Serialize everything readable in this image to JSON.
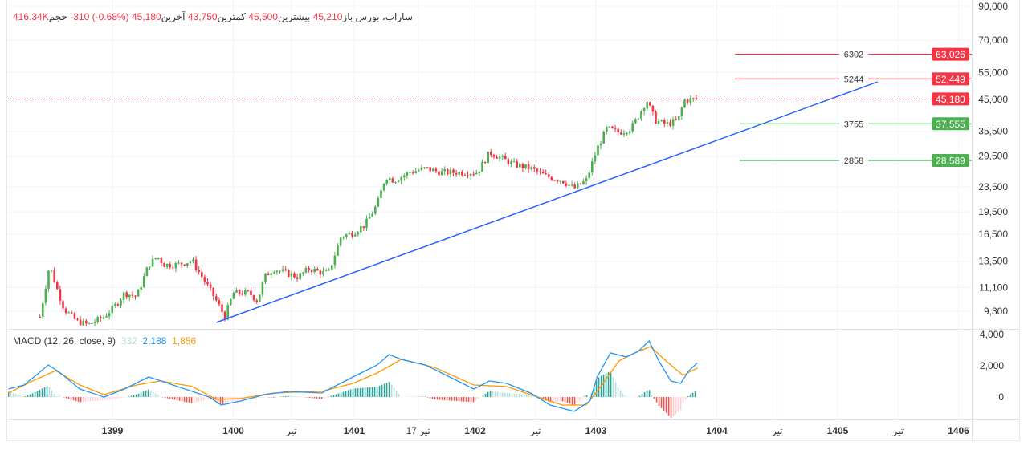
{
  "header": {
    "symbol": "ساراب، بورس",
    "open_label": "باز",
    "open": "45,210",
    "high_label": "بیشترین",
    "high": "45,500",
    "low_label": "کمترین",
    "low": "43,750",
    "last_label": "آخرین",
    "last": "45,180",
    "change": "-310 (-0.68%)",
    "volume_label": "حجم",
    "volume": "416.34K"
  },
  "macd_legend": {
    "label": "MACD (12, 26, close, 9)",
    "histogram": "332",
    "macd": "2,188",
    "signal": "1,856"
  },
  "colors": {
    "up": "#4caf50",
    "down": "#f23645",
    "trendline": "#2962ff",
    "macd": "#2196f3",
    "signal": "#ff9800",
    "hist_up": "#26a69a",
    "hist_down": "#ef5350",
    "grid": "#f0f3fa"
  },
  "chart_data": [
    {
      "type": "candlestick",
      "scale": "log",
      "ylim": [
        8400,
        90000
      ],
      "y_ticks": [
        "90,000",
        "70,000",
        "55,000",
        "45,000",
        "35,500",
        "29,500",
        "23,500",
        "19,500",
        "16,500",
        "13,500",
        "11,100",
        "9,300"
      ],
      "x_ticks": [
        {
          "year": 1399,
          "label": "1399"
        },
        {
          "year": 1400,
          "label": "1400"
        },
        {
          "year": 1400.48,
          "label": "تیر"
        },
        {
          "year": 1401,
          "label": "1401"
        },
        {
          "year": 1401.53,
          "label": "17 تیر"
        },
        {
          "year": 1402,
          "label": "1402"
        },
        {
          "year": 1402.5,
          "label": "تیر"
        },
        {
          "year": 1403,
          "label": "1403"
        },
        {
          "year": 1404,
          "label": "1404"
        },
        {
          "year": 1404.5,
          "label": "تیر"
        },
        {
          "year": 1405,
          "label": "1405"
        },
        {
          "year": 1405.5,
          "label": "تیر"
        },
        {
          "year": 1406,
          "label": "1406"
        }
      ],
      "close_path": [
        [
          1398.4,
          8925
        ],
        [
          1398.48,
          13150
        ],
        [
          1398.53,
          11330
        ],
        [
          1398.6,
          9470
        ],
        [
          1398.7,
          8660
        ],
        [
          1398.8,
          8410
        ],
        [
          1398.93,
          8925
        ],
        [
          1399.03,
          9760
        ],
        [
          1399.1,
          10670
        ],
        [
          1399.2,
          10370
        ],
        [
          1399.3,
          13150
        ],
        [
          1399.37,
          13960
        ],
        [
          1399.43,
          13150
        ],
        [
          1399.53,
          13150
        ],
        [
          1399.66,
          13550
        ],
        [
          1399.76,
          11680
        ],
        [
          1399.86,
          10060
        ],
        [
          1399.93,
          8925
        ],
        [
          1400.0,
          10670
        ],
        [
          1400.13,
          10670
        ],
        [
          1400.2,
          10060
        ],
        [
          1400.26,
          12030
        ],
        [
          1400.33,
          12780
        ],
        [
          1400.43,
          12400
        ],
        [
          1400.53,
          12030
        ],
        [
          1400.63,
          12780
        ],
        [
          1400.73,
          12400
        ],
        [
          1400.79,
          12400
        ],
        [
          1400.89,
          16210
        ],
        [
          1400.99,
          16700
        ],
        [
          1401.09,
          17730
        ],
        [
          1401.19,
          20590
        ],
        [
          1401.26,
          25370
        ],
        [
          1401.33,
          24630
        ],
        [
          1401.46,
          26140
        ],
        [
          1401.59,
          26940
        ],
        [
          1401.72,
          26140
        ],
        [
          1401.86,
          26140
        ],
        [
          1402.02,
          26140
        ],
        [
          1402.12,
          30350
        ],
        [
          1402.19,
          29450
        ],
        [
          1402.32,
          27750
        ],
        [
          1402.46,
          26940
        ],
        [
          1402.59,
          25370
        ],
        [
          1402.72,
          24630
        ],
        [
          1402.82,
          23200
        ],
        [
          1402.92,
          24630
        ],
        [
          1403.01,
          31260
        ],
        [
          1403.09,
          36300
        ],
        [
          1403.19,
          35220
        ],
        [
          1403.29,
          36300
        ],
        [
          1403.35,
          39700
        ],
        [
          1403.42,
          44730
        ],
        [
          1403.49,
          38530
        ],
        [
          1403.58,
          37390
        ],
        [
          1403.68,
          38530
        ],
        [
          1403.73,
          44730
        ],
        [
          1403.84,
          45180
        ]
      ],
      "last_price": {
        "value": 45180,
        "label": "45,180"
      },
      "trendline": {
        "from": [
          1399.86,
          8560
        ],
        "to": [
          1405.33,
          51300
        ]
      },
      "levels": [
        {
          "value": 63026,
          "label": "63,026",
          "note": "6302",
          "color": "down",
          "from": 1404.15
        },
        {
          "value": 52449,
          "label": "52,449",
          "note": "5244",
          "color": "down",
          "from": 1404.15
        },
        {
          "value": 37555,
          "label": "37,555",
          "note": "3755",
          "color": "up",
          "from": 1404.19
        },
        {
          "value": 28589,
          "label": "28,589",
          "note": "2858",
          "color": "up",
          "from": 1404.19
        }
      ]
    },
    {
      "type": "line",
      "title": "MACD (12, 26, close, 9)",
      "ylim": [
        -1200,
        4200
      ],
      "y_ticks": [
        "4,000",
        "2,000",
        "0"
      ],
      "y_tick_values": [
        4000,
        2000,
        0
      ],
      "series": [
        {
          "name": "MACD",
          "points": [
            [
              1398.14,
              513
            ],
            [
              1398.27,
              770
            ],
            [
              1398.47,
              2050
            ],
            [
              1398.57,
              1540
            ],
            [
              1398.73,
              513
            ],
            [
              1398.93,
              0
            ],
            [
              1399.1,
              513
            ],
            [
              1399.3,
              1280
            ],
            [
              1399.4,
              1030
            ],
            [
              1399.6,
              513
            ],
            [
              1399.8,
              0
            ],
            [
              1399.9,
              -513
            ],
            [
              1400.06,
              -257
            ],
            [
              1400.26,
              154
            ],
            [
              1400.46,
              360
            ],
            [
              1400.73,
              257
            ],
            [
              1400.86,
              770
            ],
            [
              1400.99,
              1280
            ],
            [
              1401.19,
              2050
            ],
            [
              1401.29,
              2720
            ],
            [
              1401.39,
              2410
            ],
            [
              1401.59,
              2050
            ],
            [
              1401.79,
              1280
            ],
            [
              1401.99,
              513
            ],
            [
              1402.12,
              1030
            ],
            [
              1402.26,
              870
            ],
            [
              1402.46,
              257
            ],
            [
              1402.62,
              -513
            ],
            [
              1402.82,
              -920
            ],
            [
              1402.95,
              -257
            ],
            [
              1403.01,
              1280
            ],
            [
              1403.12,
              2820
            ],
            [
              1403.25,
              2570
            ],
            [
              1403.35,
              2920
            ],
            [
              1403.44,
              3590
            ],
            [
              1403.52,
              2310
            ],
            [
              1403.62,
              1030
            ],
            [
              1403.7,
              870
            ],
            [
              1403.77,
              1690
            ],
            [
              1403.84,
              2188
            ]
          ]
        },
        {
          "name": "Signal",
          "points": [
            [
              1398.14,
              257
            ],
            [
              1398.34,
              1030
            ],
            [
              1398.53,
              1690
            ],
            [
              1398.73,
              770
            ],
            [
              1398.93,
              154
            ],
            [
              1399.2,
              770
            ],
            [
              1399.4,
              1030
            ],
            [
              1399.66,
              670
            ],
            [
              1399.86,
              -154
            ],
            [
              1400.06,
              -100
            ],
            [
              1400.33,
              257
            ],
            [
              1400.73,
              360
            ],
            [
              1400.99,
              870
            ],
            [
              1401.19,
              1540
            ],
            [
              1401.39,
              2410
            ],
            [
              1401.66,
              1900
            ],
            [
              1401.99,
              770
            ],
            [
              1402.26,
              670
            ],
            [
              1402.52,
              0
            ],
            [
              1402.72,
              -513
            ],
            [
              1402.92,
              -513
            ],
            [
              1403.05,
              770
            ],
            [
              1403.19,
              2310
            ],
            [
              1403.32,
              2820
            ],
            [
              1403.45,
              3230
            ],
            [
              1403.58,
              2310
            ],
            [
              1403.72,
              1390
            ],
            [
              1403.84,
              1856
            ]
          ]
        }
      ]
    }
  ]
}
